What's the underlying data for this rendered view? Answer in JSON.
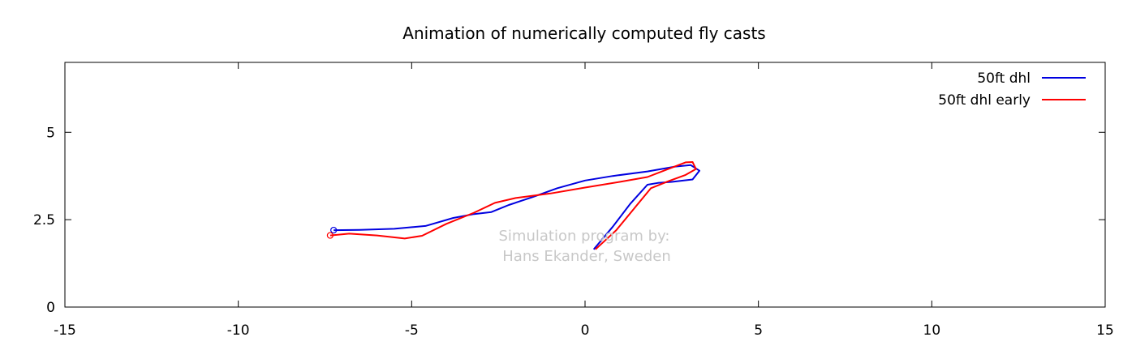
{
  "chart_data": {
    "type": "line",
    "title": "Animation of numerically computed fly casts",
    "xlabel": "",
    "ylabel": "",
    "xlim": [
      -15,
      15
    ],
    "ylim": [
      0,
      7
    ],
    "xticks": [
      -15,
      -10,
      -5,
      0,
      5,
      10,
      15
    ],
    "xtick_labels": [
      "-15",
      "-10",
      "-5",
      "0",
      "5",
      "10",
      "15"
    ],
    "yticks": [
      0,
      2.5,
      5
    ],
    "ytick_labels": [
      "0",
      "2.5",
      "5"
    ],
    "grid": false,
    "legend_position": "top-right",
    "annotation": [
      "Simulation program by:",
      "Hans Ekander, Sweden"
    ],
    "series": [
      {
        "name": "50ft dhl",
        "color": "#0000e0",
        "points": [
          [
            -7.25,
            2.2
          ],
          [
            -6.5,
            2.21
          ],
          [
            -5.5,
            2.24
          ],
          [
            -4.6,
            2.32
          ],
          [
            -3.8,
            2.55
          ],
          [
            -3.2,
            2.66
          ],
          [
            -2.7,
            2.72
          ],
          [
            -2.2,
            2.92
          ],
          [
            -1.5,
            3.15
          ],
          [
            -0.8,
            3.4
          ],
          [
            0,
            3.62
          ],
          [
            0.8,
            3.75
          ],
          [
            1.8,
            3.88
          ],
          [
            2.6,
            4.02
          ],
          [
            3.05,
            4.06
          ],
          [
            3.3,
            3.9
          ],
          [
            3.1,
            3.65
          ],
          [
            2.5,
            3.58
          ],
          [
            2.1,
            3.55
          ],
          [
            1.8,
            3.5
          ],
          [
            1.3,
            2.95
          ],
          [
            0.8,
            2.3
          ],
          [
            0.25,
            1.65
          ]
        ],
        "marker_point": [
          -7.25,
          2.2
        ]
      },
      {
        "name": "50ft dhl early",
        "color": "#ff0000",
        "points": [
          [
            -7.35,
            2.05
          ],
          [
            -6.8,
            2.1
          ],
          [
            -6.0,
            2.05
          ],
          [
            -5.2,
            1.96
          ],
          [
            -4.7,
            2.04
          ],
          [
            -4.0,
            2.38
          ],
          [
            -3.2,
            2.7
          ],
          [
            -2.6,
            2.98
          ],
          [
            -2.0,
            3.12
          ],
          [
            -1.0,
            3.25
          ],
          [
            0,
            3.42
          ],
          [
            1.0,
            3.58
          ],
          [
            1.8,
            3.72
          ],
          [
            2.4,
            3.95
          ],
          [
            2.9,
            4.14
          ],
          [
            3.1,
            4.15
          ],
          [
            3.2,
            3.95
          ],
          [
            2.9,
            3.78
          ],
          [
            2.4,
            3.6
          ],
          [
            1.9,
            3.4
          ],
          [
            1.4,
            2.8
          ],
          [
            0.9,
            2.2
          ],
          [
            0.3,
            1.65
          ]
        ],
        "marker_point": [
          -7.35,
          2.05
        ]
      }
    ]
  }
}
